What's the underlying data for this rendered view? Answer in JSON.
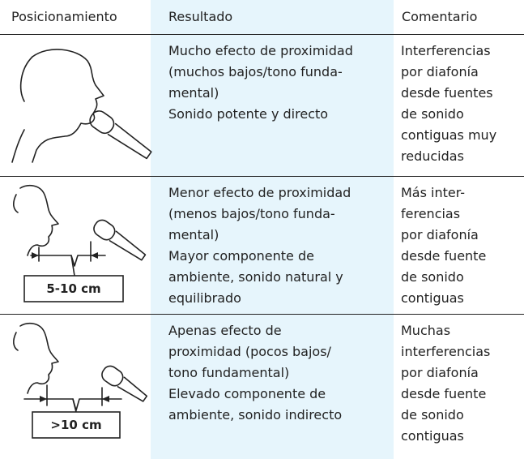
{
  "table": {
    "header": [
      "Posicionamiento",
      "Resultado",
      "Comentario"
    ],
    "rows": [
      {
        "result": [
          "Mucho efecto de proximidad",
          "(muchos bajos/tono funda-",
          "mental)",
          "Sonido potente y directo"
        ],
        "comment": [
          "Interferencias",
          "por diafonía",
          "desde fuentes",
          "de sonido",
          "contiguas muy",
          "reducidas"
        ]
      },
      {
        "distance": "5-10 cm",
        "result": [
          "Menor efecto de proximidad",
          "(menos bajos/tono funda-",
          "mental)",
          "Mayor componente de",
          "ambiente, sonido natural y",
          "equilibrado"
        ],
        "comment": [
          "Más inter-",
          "ferencias",
          "por diafonía",
          "desde fuente",
          "de sonido",
          "contiguas"
        ]
      },
      {
        "distance": ">10 cm",
        "result": [
          "Apenas efecto de",
          "proximidad (pocos bajos/",
          "tono fundamental)",
          "Elevado componente de",
          "ambiente, sonido indirecto"
        ],
        "comment": [
          "Muchas",
          "interferencias",
          "por diafonía",
          "desde fuente",
          "de sonido",
          "contiguas"
        ]
      }
    ]
  }
}
